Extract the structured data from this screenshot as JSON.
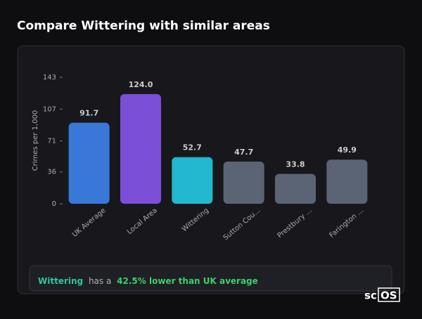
{
  "header": {
    "title": "Compare Wittering with similar areas"
  },
  "chart_data": {
    "type": "bar",
    "y_label": "Crimes per 1,000",
    "categories": [
      "UK Average",
      "Local Area",
      "Wittering",
      "Sutton Cou...",
      "Prestbury ...",
      "Farington ..."
    ],
    "values": [
      91.7,
      124.0,
      52.7,
      47.7,
      33.8,
      49.9
    ],
    "value_labels": [
      "91.7",
      "124.0",
      "52.7",
      "47.7",
      "33.8",
      "49.9"
    ],
    "colors": [
      "#3a78d8",
      "#7b4fd8",
      "#22b8d0",
      "#5b6475",
      "#5b6475",
      "#5b6475"
    ],
    "ylim": [
      0,
      143
    ],
    "yticks": [
      0,
      36,
      71,
      107,
      143
    ]
  },
  "insight": {
    "area": "Wittering",
    "text": "has a",
    "highlight": "42.5% lower than UK average"
  },
  "logo": {
    "prefix": "sc",
    "suffix": "OS"
  }
}
